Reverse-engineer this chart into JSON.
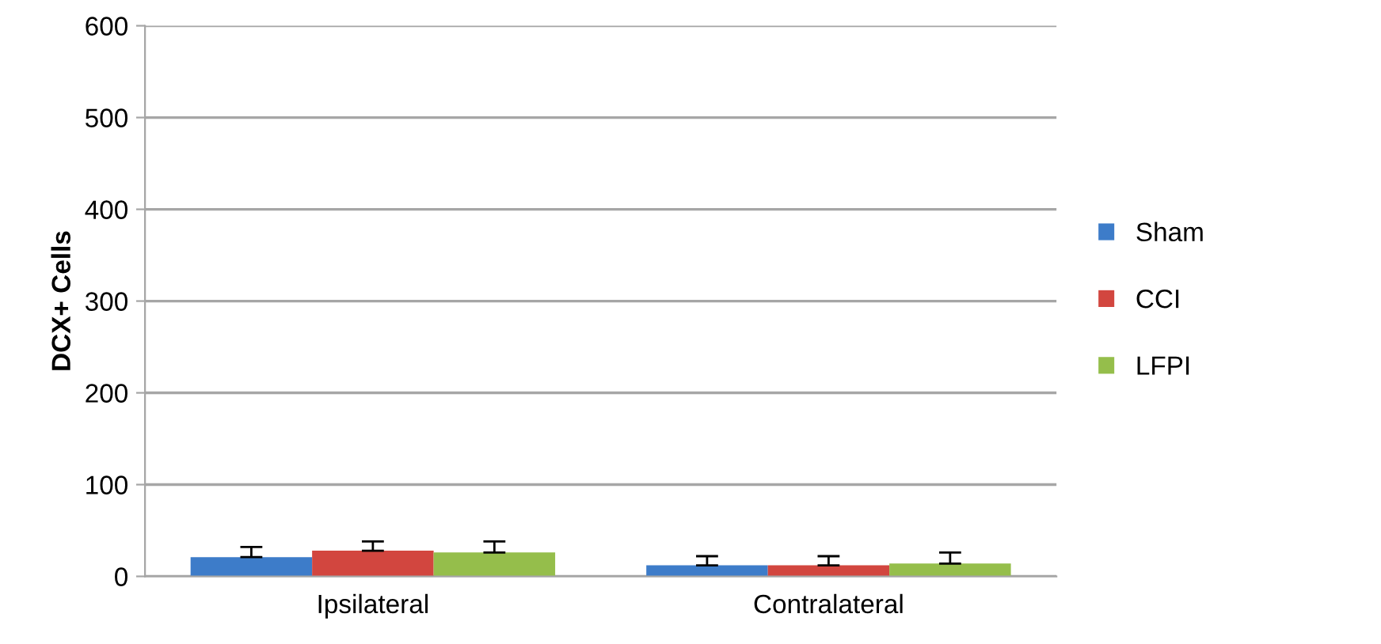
{
  "chart_data": {
    "type": "bar",
    "ylabel": "DCX+ Cells",
    "categories": [
      "Ipsilateral",
      "Contralateral"
    ],
    "series": [
      {
        "name": "Sham",
        "color": "#3d7cc9",
        "values": [
          21,
          12
        ],
        "errors": [
          11,
          10
        ]
      },
      {
        "name": "CCI",
        "color": "#d2463f",
        "values": [
          28,
          12
        ],
        "errors": [
          10,
          10
        ]
      },
      {
        "name": "LFPI",
        "color": "#95be4b",
        "values": [
          26,
          14
        ],
        "errors": [
          12,
          12
        ]
      }
    ],
    "ylim": [
      0,
      600
    ],
    "yticks": [
      0,
      100,
      200,
      300,
      400,
      500,
      600
    ],
    "grid": "y",
    "legend": "right"
  }
}
